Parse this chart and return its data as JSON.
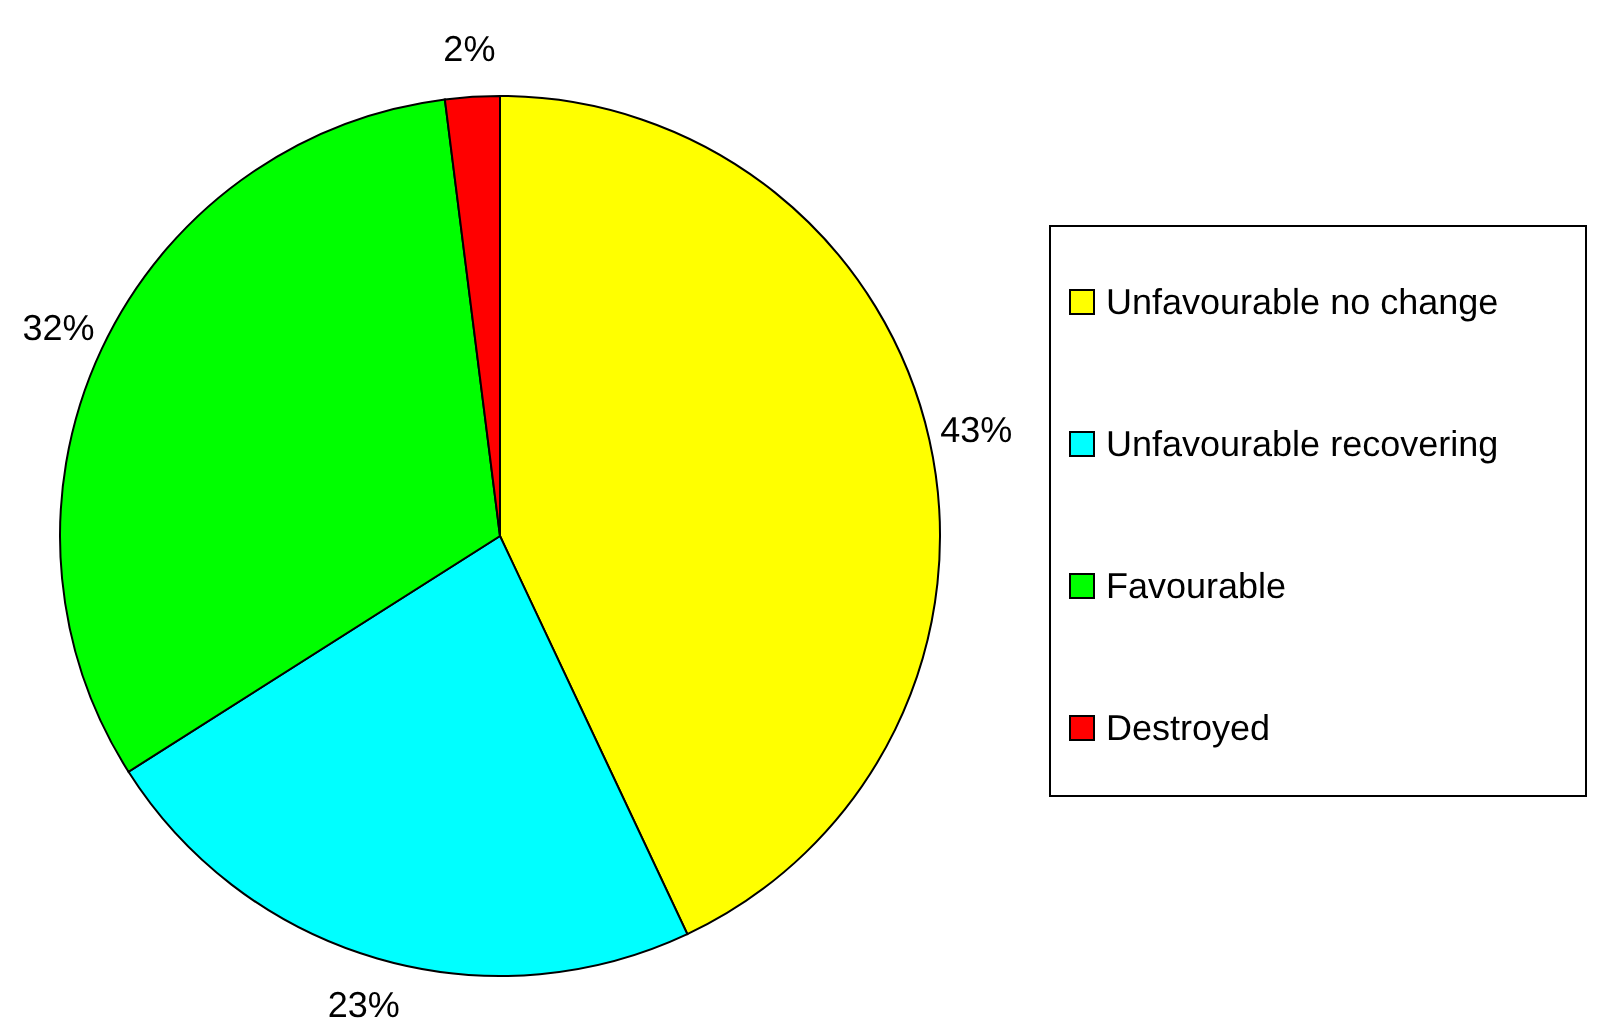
{
  "chart_data": {
    "type": "pie",
    "categories": [
      "Unfavourable no change",
      "Unfavourable recovering",
      "Favourable",
      "Destroyed"
    ],
    "values": [
      43,
      23,
      32,
      2
    ],
    "colors": [
      "#ffff00",
      "#00ffff",
      "#00ff00",
      "#ff0000"
    ],
    "value_labels": [
      "43%",
      "23%",
      "32%",
      "2%"
    ],
    "legend": "right"
  }
}
